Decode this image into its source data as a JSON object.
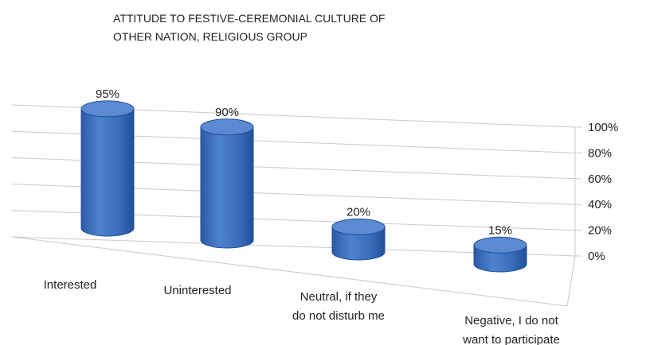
{
  "chart_data": {
    "type": "bar",
    "style": "3d-cylinder",
    "title_lines": [
      "ATTITUDE TO FESTIVE-CEREMONIAL CULTURE OF",
      "OTHER NATION, RELIGIOUS GROUP"
    ],
    "categories": [
      [
        "Interested"
      ],
      [
        "Uninterested"
      ],
      [
        "Neutral, if they",
        "do not disturb me"
      ],
      [
        "Negative, I do not",
        "want to participate"
      ]
    ],
    "values": [
      95,
      90,
      20,
      15
    ],
    "value_labels": [
      "95%",
      "90%",
      "20%",
      "15%"
    ],
    "ytick_labels": [
      "0%",
      "20%",
      "40%",
      "60%",
      "80%",
      "100%"
    ],
    "ylim": [
      0,
      100
    ],
    "grid": true,
    "yaxis_position": "right",
    "legend": "none",
    "colors": {
      "bar_side": "#3c6fbf",
      "bar_top": "#5b8ad3",
      "bar_edge": "#1f4e99",
      "grid": "#c9c9c9"
    }
  }
}
